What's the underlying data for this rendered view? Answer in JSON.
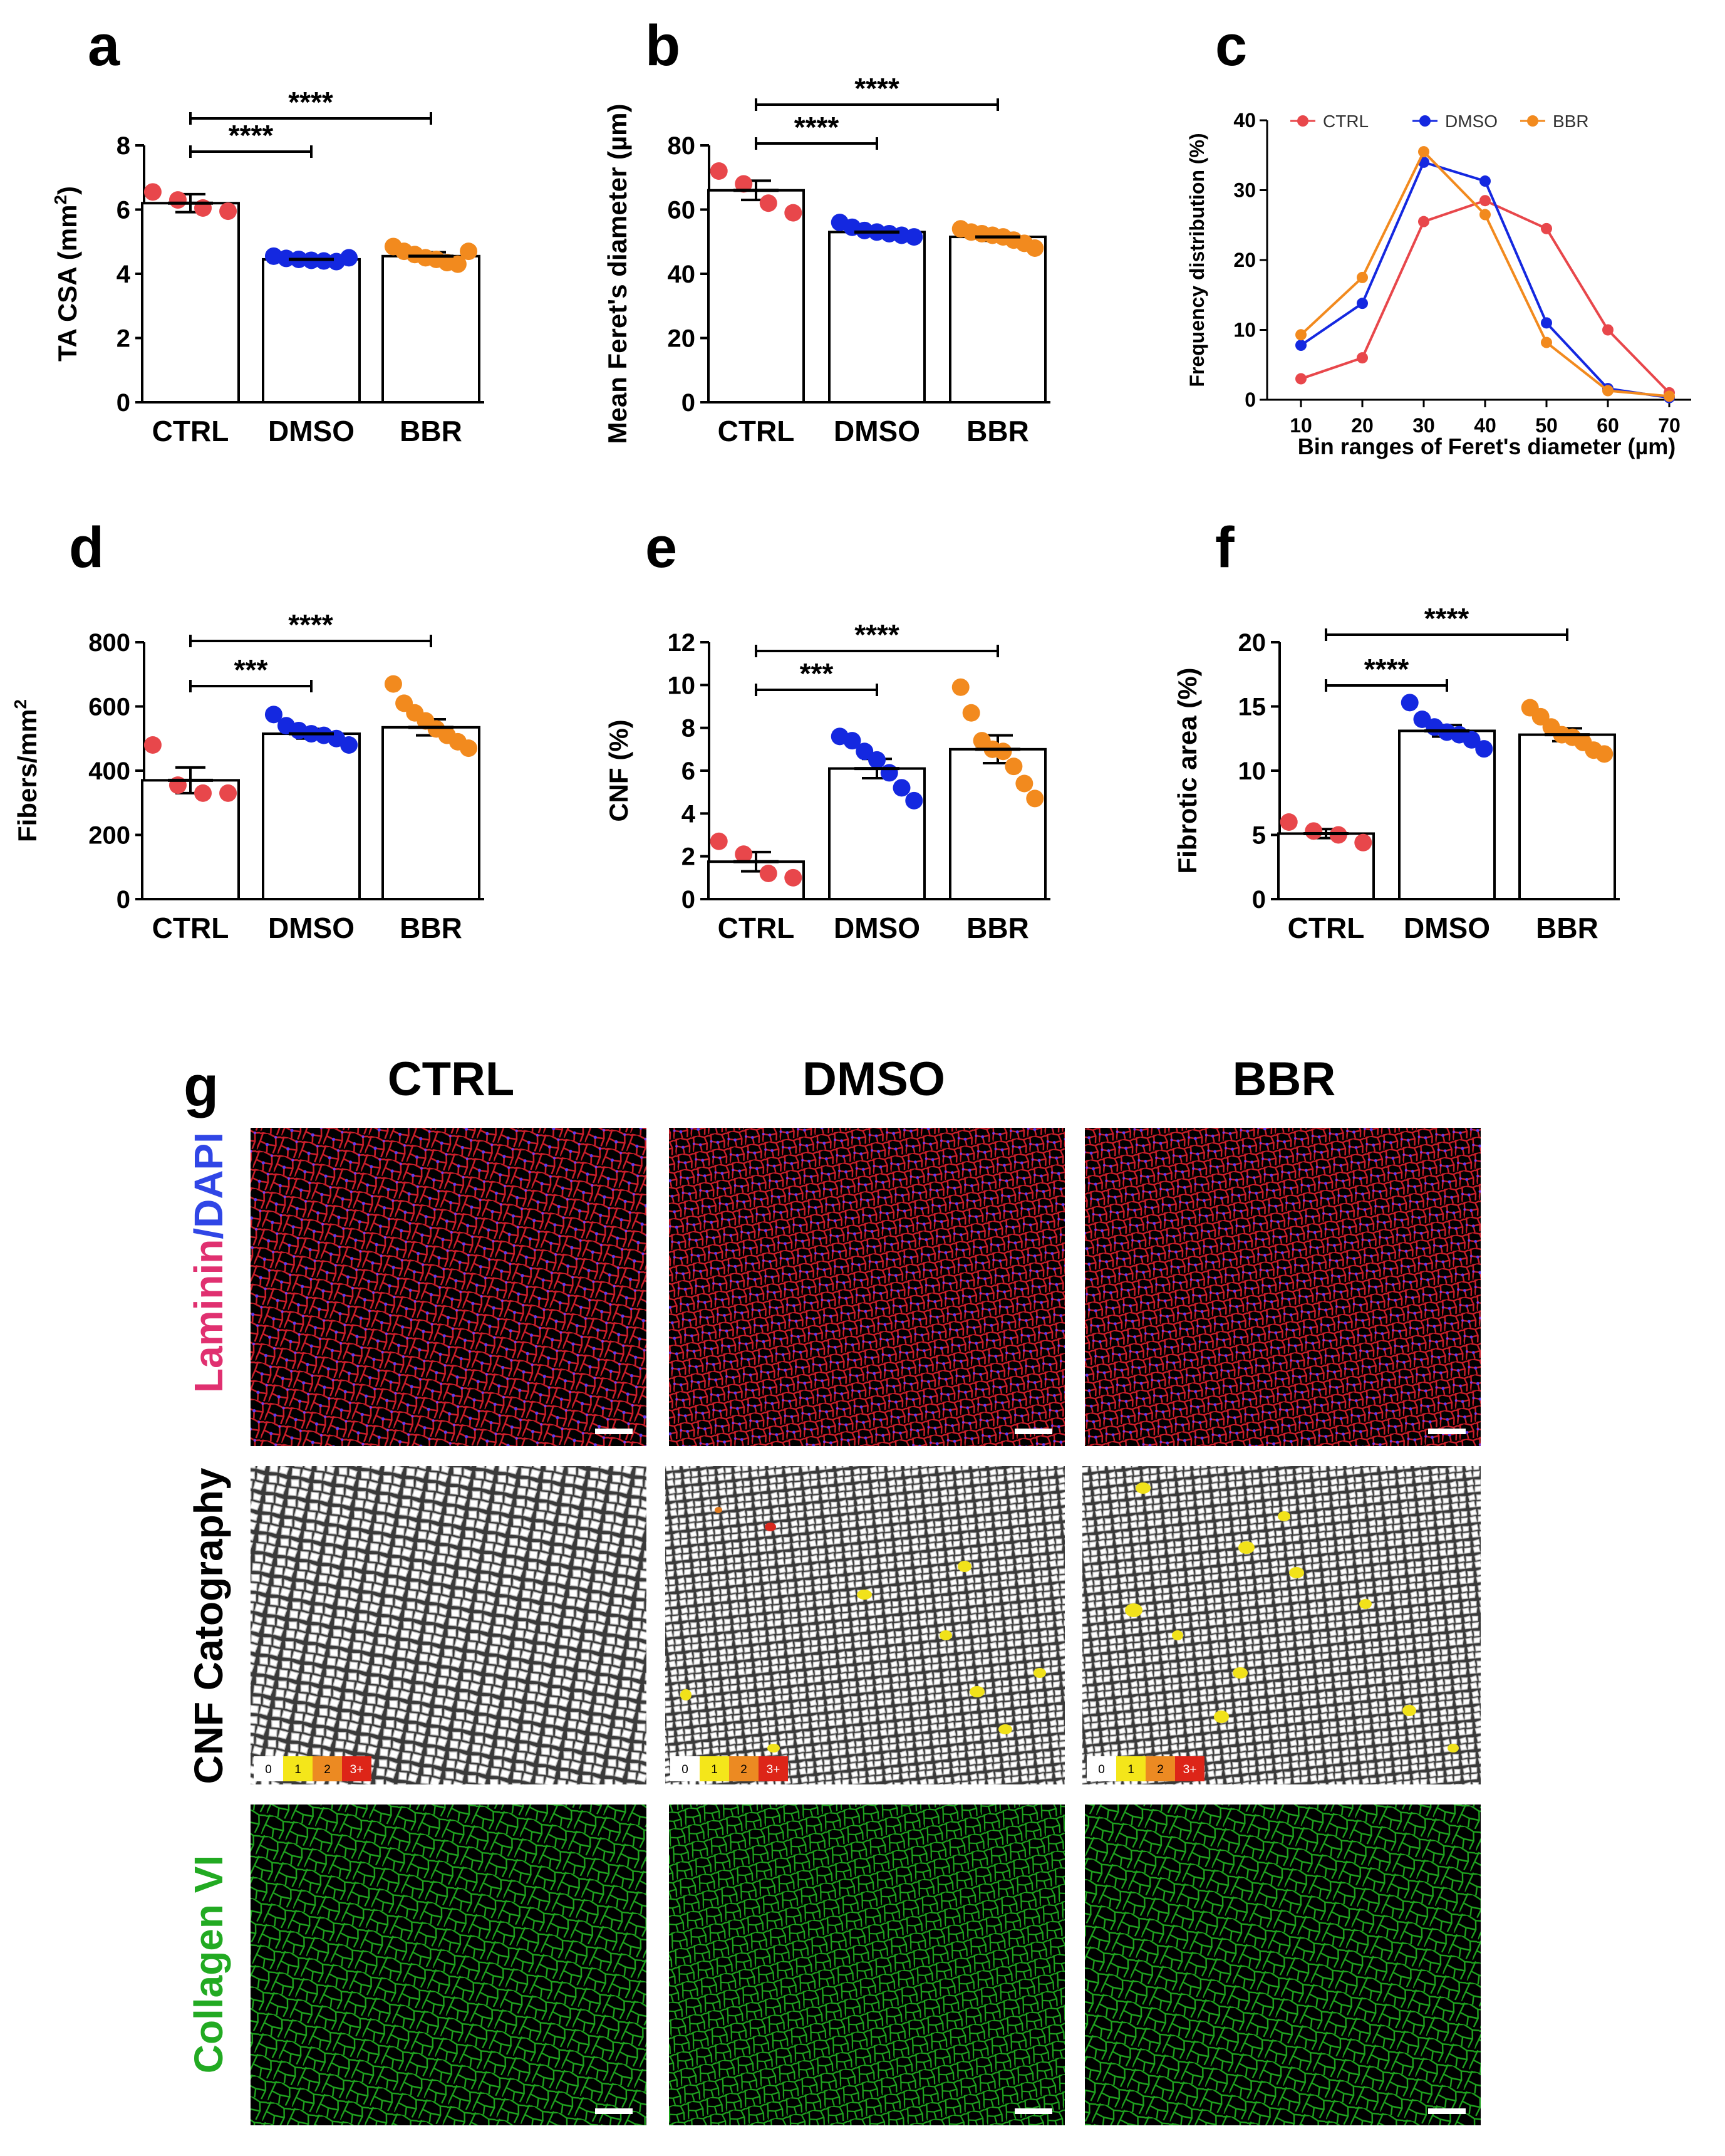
{
  "colors": {
    "CTRL": "#e8474b",
    "DMSO": "#1428e0",
    "BBR": "#f28a1e",
    "laminin": "#e03070",
    "dapi": "#3046e6",
    "collagen": "#22aa22"
  },
  "chart_data": [
    {
      "id": "a",
      "type": "bar",
      "panel_label": "a",
      "categories": [
        "CTRL",
        "DMSO",
        "BBR"
      ],
      "values": [
        6.2,
        4.45,
        4.55
      ],
      "sem": [
        0.28,
        0.06,
        0.12
      ],
      "points": [
        [
          6.55,
          6.3,
          6.05,
          5.95
        ],
        [
          4.55,
          4.48,
          4.45,
          4.42,
          4.4,
          4.38,
          4.5
        ],
        [
          4.85,
          4.7,
          4.6,
          4.5,
          4.45,
          4.35,
          4.3,
          4.7
        ]
      ],
      "ylabel_pre": "TA CSA (mm",
      "ylabel_sup": "2",
      "ylabel_post": ")",
      "ylim": [
        0,
        8
      ],
      "yticks": [
        0,
        2,
        4,
        6,
        8
      ],
      "significance": [
        {
          "from": "CTRL",
          "to": "DMSO",
          "label": "****"
        },
        {
          "from": "CTRL",
          "to": "BBR",
          "label": "****"
        }
      ]
    },
    {
      "id": "b",
      "type": "bar",
      "panel_label": "b",
      "categories": [
        "CTRL",
        "DMSO",
        "BBR"
      ],
      "values": [
        66,
        53,
        51.5
      ],
      "sem": [
        3.0,
        0.8,
        1.2
      ],
      "points": [
        [
          72,
          68,
          62,
          59
        ],
        [
          56,
          54.5,
          53.5,
          53,
          52.5,
          52,
          51.5
        ],
        [
          54,
          53,
          52.5,
          52,
          51.5,
          50.5,
          49.5,
          48
        ]
      ],
      "ylabel_pre": "Mean Feret's diameter (µm)",
      "ylabel_sup": "",
      "ylabel_post": "",
      "ylim": [
        0,
        80
      ],
      "yticks": [
        0,
        20,
        40,
        60,
        80
      ],
      "significance": [
        {
          "from": "CTRL",
          "to": "DMSO",
          "label": "****"
        },
        {
          "from": "CTRL",
          "to": "BBR",
          "label": "****"
        }
      ]
    },
    {
      "id": "c",
      "type": "line",
      "panel_label": "c",
      "x": [
        10,
        20,
        30,
        40,
        50,
        60,
        70
      ],
      "series": [
        {
          "name": "CTRL",
          "values": [
            3,
            6,
            25.5,
            28.5,
            24.5,
            10,
            1
          ]
        },
        {
          "name": "DMSO",
          "values": [
            7.8,
            13.8,
            34,
            31.3,
            11,
            1.6,
            0.3
          ]
        },
        {
          "name": "BBR",
          "values": [
            9.3,
            17.5,
            35.5,
            26.5,
            8.2,
            1.3,
            0.5
          ]
        }
      ],
      "xlabel": "Bin ranges of Feret's diameter (µm)",
      "ylabel": "Frequency distribution (%)",
      "ylim": [
        0,
        40
      ],
      "yticks": [
        0,
        10,
        20,
        30,
        40
      ],
      "legend": "top"
    },
    {
      "id": "d",
      "type": "bar",
      "panel_label": "d",
      "categories": [
        "CTRL",
        "DMSO",
        "BBR"
      ],
      "values": [
        370,
        515,
        535
      ],
      "sem": [
        40,
        15,
        25
      ],
      "points": [
        [
          480,
          355,
          330,
          330
        ],
        [
          575,
          540,
          525,
          515,
          510,
          500,
          480
        ],
        [
          670,
          610,
          580,
          555,
          530,
          510,
          490,
          470
        ]
      ],
      "ylabel_pre": "Fibers/mm",
      "ylabel_sup": "2",
      "ylabel_post": "",
      "ylim": [
        0,
        800
      ],
      "yticks": [
        0,
        200,
        400,
        600,
        800
      ],
      "significance": [
        {
          "from": "CTRL",
          "to": "DMSO",
          "label": "***"
        },
        {
          "from": "CTRL",
          "to": "BBR",
          "label": "****"
        }
      ]
    },
    {
      "id": "e",
      "type": "bar",
      "panel_label": "e",
      "categories": [
        "CTRL",
        "DMSO",
        "BBR"
      ],
      "values": [
        1.75,
        6.1,
        7.0
      ],
      "sem": [
        0.45,
        0.45,
        0.65
      ],
      "points": [
        [
          2.7,
          2.1,
          1.2,
          1.0
        ],
        [
          7.6,
          7.4,
          6.9,
          6.5,
          5.9,
          5.2,
          4.6
        ],
        [
          9.9,
          8.7,
          7.4,
          7.0,
          6.9,
          6.2,
          5.4,
          4.7
        ]
      ],
      "ylabel_pre": "CNF (%)",
      "ylabel_sup": "",
      "ylabel_post": "",
      "ylim": [
        0,
        12
      ],
      "yticks": [
        0,
        2,
        4,
        6,
        8,
        10,
        12
      ],
      "significance": [
        {
          "from": "CTRL",
          "to": "DMSO",
          "label": "***"
        },
        {
          "from": "CTRL",
          "to": "BBR",
          "label": "****"
        }
      ]
    },
    {
      "id": "f",
      "type": "bar",
      "panel_label": "f",
      "categories": [
        "CTRL",
        "DMSO",
        "BBR"
      ],
      "values": [
        5.1,
        13.1,
        12.8
      ],
      "sem": [
        0.35,
        0.45,
        0.5
      ],
      "points": [
        [
          6.0,
          5.3,
          5.0,
          4.4
        ],
        [
          15.3,
          14.0,
          13.4,
          13.0,
          12.8,
          12.4,
          11.7
        ],
        [
          14.9,
          14.2,
          13.4,
          12.8,
          12.6,
          12.2,
          11.6,
          11.3
        ]
      ],
      "ylabel_pre": "Fibrotic area (%)",
      "ylabel_sup": "",
      "ylabel_post": "",
      "ylim": [
        0,
        20
      ],
      "yticks": [
        0,
        5,
        10,
        15,
        20
      ],
      "significance": [
        {
          "from": "CTRL",
          "to": "DMSO",
          "label": "****"
        },
        {
          "from": "CTRL",
          "to": "BBR",
          "label": "****"
        }
      ]
    }
  ],
  "panel_g": {
    "label": "g",
    "columns": [
      "CTRL",
      "DMSO",
      "BBR"
    ],
    "row_laminin_a": "Laminin",
    "row_laminin_sep": "/",
    "row_laminin_b": "DAPI",
    "row_cnf": "CNF Catography",
    "row_collagen": "Collagen VI",
    "cnf_key": [
      "0",
      "1",
      "2",
      "3+"
    ]
  }
}
